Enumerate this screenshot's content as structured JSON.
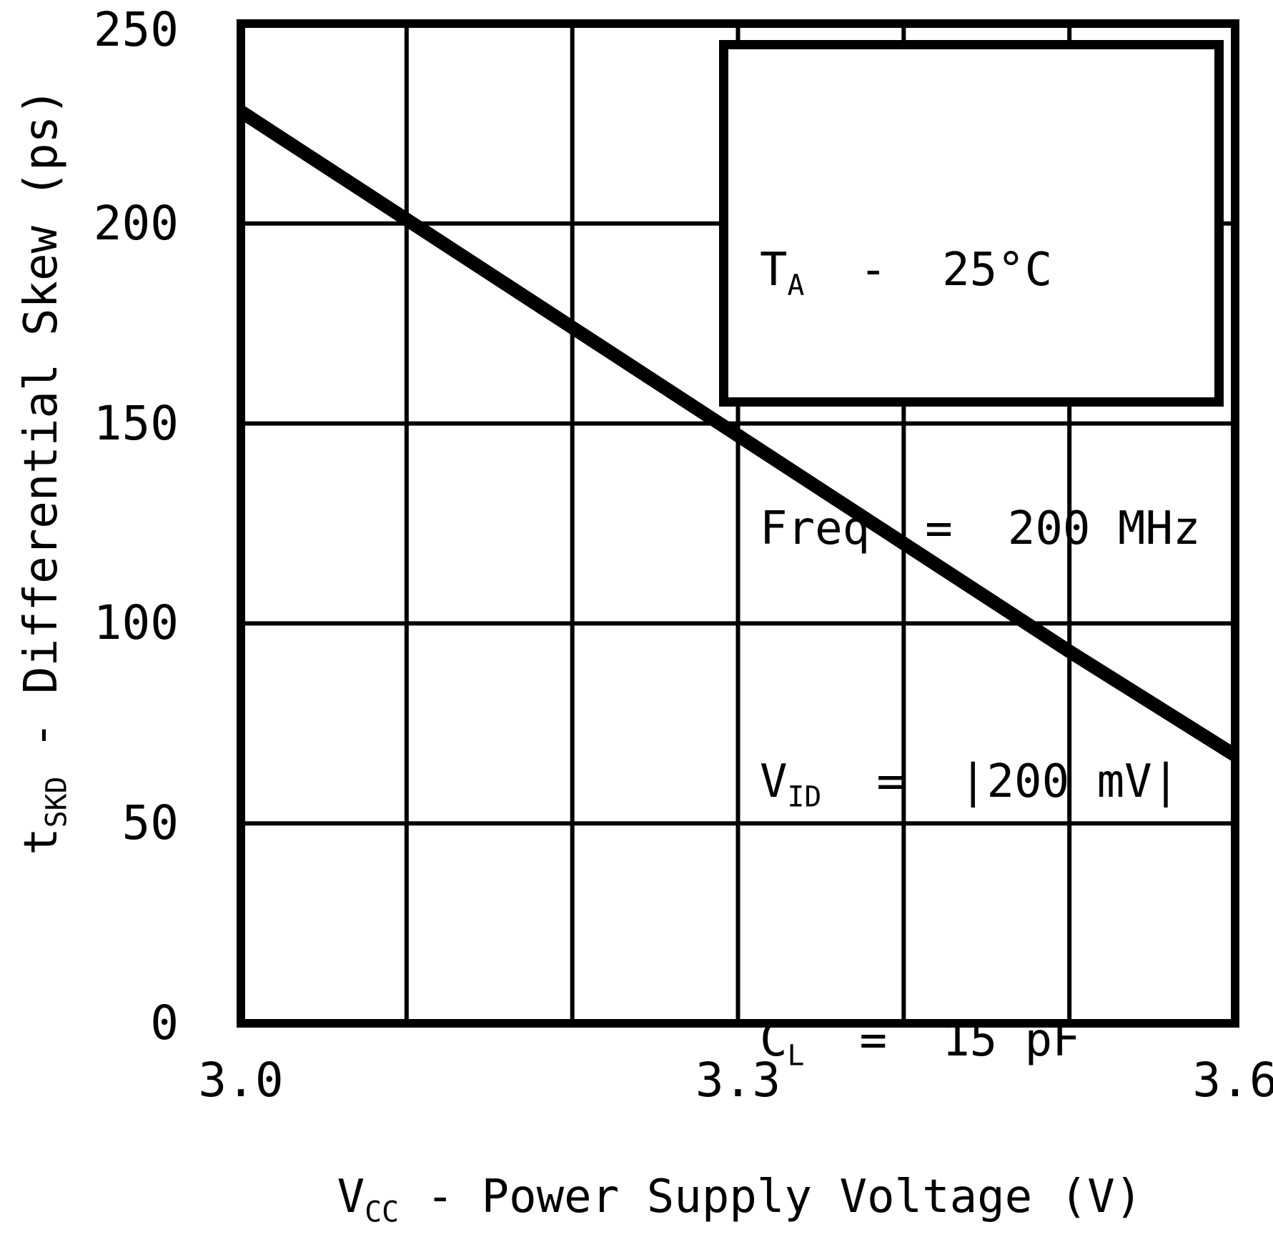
{
  "colors": {
    "foreground": "#000000",
    "background": "#ffffff"
  },
  "legend": {
    "lines": [
      {
        "pre": "T",
        "sub": "A",
        "rest": "  -  25°C",
        "text": "TA - 25°C"
      },
      {
        "pre": "Freq",
        "sub": "",
        "rest": "  =  200 MHz",
        "text": "Freq = 200 MHz"
      },
      {
        "pre": "V",
        "sub": "ID",
        "rest": "  =  |200 mV|",
        "text": "VID = |200 mV|"
      },
      {
        "pre": "C",
        "sub": "L",
        "rest": "  =  15 pF",
        "text": "CL = 15 pF"
      }
    ]
  },
  "axes": {
    "y_title": {
      "pre": "t",
      "sub": "SKD",
      "rest": " - Differential Skew (ps)"
    },
    "x_title": {
      "pre": "V",
      "sub": "CC",
      "rest": " - Power Supply Voltage (V)"
    }
  },
  "chart_data": {
    "type": "line",
    "title": "",
    "xlabel": "VCC - Power Supply Voltage (V)",
    "ylabel": "tSKD - Differential Skew (ps)",
    "x": [
      3.0,
      3.1,
      3.2,
      3.3,
      3.4,
      3.5,
      3.6
    ],
    "y": [
      228,
      201,
      174,
      147,
      120,
      93,
      67
    ],
    "xlim": [
      3.0,
      3.6
    ],
    "ylim": [
      0,
      250
    ],
    "x_grid_step": 0.1,
    "y_grid_step": 50,
    "x_tick_values": [
      3.0,
      3.3,
      3.6
    ],
    "x_tick_labels": [
      "3.0",
      "3.3",
      "3.6"
    ],
    "y_tick_values": [
      250,
      200,
      150,
      100,
      50,
      0
    ],
    "y_tick_labels": [
      "250",
      "200",
      "150",
      "100",
      "50",
      "0"
    ],
    "grid": "on",
    "legend_position": "upper right",
    "annotations": [
      "TA - 25°C",
      "Freq = 200 MHz",
      "VID = |200 mV|",
      "CL = 15 pF"
    ]
  }
}
